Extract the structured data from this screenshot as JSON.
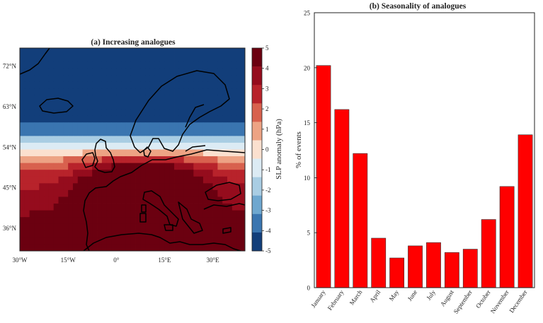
{
  "chart_data": [
    {
      "type": "heatmap",
      "title": "(a) Increasing analogues",
      "lat_ticks": [
        "72°N",
        "63°N",
        "54°N",
        "45°N",
        "36°N"
      ],
      "lon_ticks": [
        "30°W",
        "15°W",
        "0°",
        "15°E",
        "30°E"
      ],
      "lon_range": [
        -30,
        40
      ],
      "lat_range": [
        31,
        76
      ],
      "colorbar": {
        "label": "SLP anomaly (hPa)",
        "ticks": [
          "5",
          "4",
          "3",
          "2",
          "1",
          "0",
          "-1",
          "-2",
          "-3",
          "-4",
          "-5"
        ],
        "range": [
          -5,
          5
        ],
        "colors": [
          "#6b0010",
          "#950c1d",
          "#b8232b",
          "#d8614e",
          "#eda384",
          "#fbe0cf",
          "#dcebf4",
          "#a9cde3",
          "#6ea7cf",
          "#3a75b0",
          "#123e7a"
        ]
      },
      "field": {
        "north": {
          "lat": 63,
          "value": -5
        },
        "low": {
          "lon": 8,
          "lat": 45,
          "value": 5
        },
        "coastline_color": "#000000"
      }
    },
    {
      "type": "bar",
      "title": "(b) Seasonality of analogues",
      "categories": [
        "January",
        "February",
        "March",
        "April",
        "May",
        "June",
        "July",
        "August",
        "September",
        "October",
        "November",
        "December"
      ],
      "values": [
        20.2,
        16.2,
        12.2,
        4.5,
        2.7,
        3.8,
        4.1,
        3.2,
        3.5,
        6.2,
        9.2,
        13.9
      ],
      "ylabel": "% of events",
      "xlabel": "",
      "ylim": [
        0,
        25
      ],
      "yticks": [
        "0",
        "5",
        "10",
        "15",
        "20",
        "25"
      ],
      "bar_color": "#ff0000"
    }
  ]
}
